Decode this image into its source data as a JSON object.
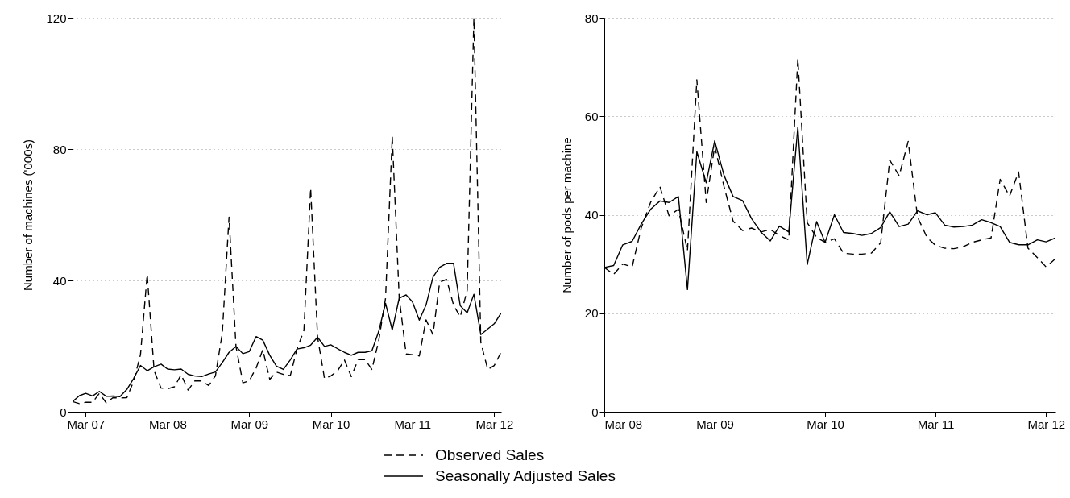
{
  "chart_data": [
    {
      "type": "line",
      "ylabel": "Number of machines ('000s)",
      "x": [
        "2007-01",
        "2007-02",
        "2007-03",
        "2007-04",
        "2007-05",
        "2007-06",
        "2007-07",
        "2007-08",
        "2007-09",
        "2007-10",
        "2007-11",
        "2007-12",
        "2008-01",
        "2008-02",
        "2008-03",
        "2008-04",
        "2008-05",
        "2008-06",
        "2008-07",
        "2008-08",
        "2008-09",
        "2008-10",
        "2008-11",
        "2008-12",
        "2009-01",
        "2009-02",
        "2009-03",
        "2009-04",
        "2009-05",
        "2009-06",
        "2009-07",
        "2009-08",
        "2009-09",
        "2009-10",
        "2009-11",
        "2009-12",
        "2010-01",
        "2010-02",
        "2010-03",
        "2010-04",
        "2010-05",
        "2010-06",
        "2010-07",
        "2010-08",
        "2010-09",
        "2010-10",
        "2010-11",
        "2010-12",
        "2011-01",
        "2011-02",
        "2011-03",
        "2011-04",
        "2011-05",
        "2011-06",
        "2011-07",
        "2011-08",
        "2011-09",
        "2011-10",
        "2011-11",
        "2011-12",
        "2012-01",
        "2012-02",
        "2012-03",
        "2012-04"
      ],
      "series": [
        {
          "name": "Observed Sales",
          "color": "#000000",
          "line_style": "dashed",
          "values": [
            3.1,
            2.5,
            2.9,
            2.9,
            5.6,
            2.7,
            4.3,
            4.2,
            4.3,
            9.2,
            17.4,
            41.9,
            12.5,
            7.2,
            7.0,
            7.6,
            11.3,
            6.6,
            9.4,
            9.4,
            8.0,
            10.9,
            24.0,
            59.3,
            19.9,
            8.8,
            9.4,
            13.3,
            18.9,
            9.9,
            12.1,
            11.4,
            11.0,
            19.1,
            24.8,
            68.1,
            22.7,
            10.1,
            10.9,
            12.5,
            15.8,
            10.7,
            15.9,
            15.9,
            12.9,
            21.5,
            34.6,
            83.8,
            34.8,
            17.6,
            17.4,
            17.0,
            28.0,
            23.5,
            39.5,
            40.3,
            32.5,
            28.9,
            37.0,
            120.0,
            21.1,
            12.9,
            14.1,
            18.2
          ]
        },
        {
          "name": "Seasonally Adjusted Sales",
          "color": "#000000",
          "line_style": "solid",
          "values": [
            3.1,
            4.9,
            5.6,
            4.8,
            6.2,
            4.7,
            4.8,
            4.6,
            6.8,
            10.1,
            14.1,
            12.5,
            13.7,
            14.5,
            13.0,
            12.8,
            13.0,
            11.4,
            10.9,
            10.7,
            11.5,
            12.1,
            15.0,
            18.1,
            19.9,
            17.7,
            18.3,
            22.9,
            21.8,
            17.2,
            13.9,
            12.9,
            15.8,
            19.1,
            19.5,
            20.3,
            22.7,
            19.9,
            20.4,
            19.2,
            18.1,
            17.2,
            18.1,
            18.1,
            18.6,
            24.4,
            33.0,
            24.9,
            34.6,
            35.6,
            33.5,
            27.9,
            32.5,
            41.0,
            44.0,
            45.2,
            45.2,
            32.3,
            30.1,
            35.8,
            23.5,
            25.2,
            26.8,
            30.1
          ]
        }
      ],
      "xlim": [
        "2007-01",
        "2012-04"
      ],
      "xticks": [
        {
          "value": "2007-03",
          "label": "Mar 07"
        },
        {
          "value": "2008-03",
          "label": "Mar 08"
        },
        {
          "value": "2009-03",
          "label": "Mar 09"
        },
        {
          "value": "2010-03",
          "label": "Mar 10"
        },
        {
          "value": "2011-03",
          "label": "Mar 11"
        },
        {
          "value": "2012-03",
          "label": "Mar 12"
        }
      ],
      "ylim": [
        0,
        120
      ],
      "yticks": [
        0,
        40,
        80,
        120
      ],
      "grid": "y",
      "legend": "bottom"
    },
    {
      "type": "line",
      "ylabel": "Number of pods per machine",
      "x": [
        "2008-03",
        "2008-04",
        "2008-05",
        "2008-06",
        "2008-07",
        "2008-08",
        "2008-09",
        "2008-10",
        "2008-11",
        "2008-12",
        "2009-01",
        "2009-02",
        "2009-03",
        "2009-04",
        "2009-05",
        "2009-06",
        "2009-07",
        "2009-08",
        "2009-09",
        "2009-10",
        "2009-11",
        "2009-12",
        "2010-01",
        "2010-02",
        "2010-03",
        "2010-04",
        "2010-05",
        "2010-06",
        "2010-07",
        "2010-08",
        "2010-09",
        "2010-10",
        "2010-11",
        "2010-12",
        "2011-01",
        "2011-02",
        "2011-03",
        "2011-04",
        "2011-05",
        "2011-06",
        "2011-07",
        "2011-08",
        "2011-09",
        "2011-10",
        "2011-11",
        "2011-12",
        "2012-01",
        "2012-02",
        "2012-03",
        "2012-04"
      ],
      "series": [
        {
          "name": "Observed Sales",
          "color": "#000000",
          "line_style": "dashed",
          "values": [
            29.3,
            27.9,
            30.0,
            29.4,
            37.3,
            42.5,
            45.7,
            39.8,
            41.1,
            32.7,
            67.4,
            42.5,
            53.9,
            45.7,
            38.7,
            36.8,
            37.3,
            36.5,
            37.0,
            35.8,
            34.9,
            71.7,
            38.4,
            35.4,
            34.4,
            35.1,
            32.2,
            32.0,
            32.0,
            32.2,
            34.3,
            51.1,
            47.9,
            54.9,
            39.5,
            35.4,
            33.8,
            33.2,
            33.1,
            33.5,
            34.4,
            34.9,
            35.3,
            47.2,
            43.8,
            48.7,
            33.2,
            31.3,
            29.4,
            31.1
          ]
        },
        {
          "name": "Seasonally Adjusted Sales",
          "color": "#000000",
          "line_style": "solid",
          "values": [
            29.3,
            29.7,
            33.9,
            34.6,
            38.1,
            41.1,
            42.8,
            42.5,
            43.7,
            24.8,
            52.8,
            46.5,
            55.0,
            48.0,
            43.7,
            42.9,
            39.2,
            36.5,
            34.7,
            37.7,
            36.5,
            57.8,
            29.9,
            38.6,
            34.4,
            40.0,
            36.4,
            36.2,
            35.8,
            36.2,
            37.4,
            40.6,
            37.6,
            38.1,
            40.8,
            40.0,
            40.4,
            37.9,
            37.5,
            37.6,
            37.9,
            39.0,
            38.4,
            37.6,
            34.4,
            33.9,
            33.9,
            34.9,
            34.5,
            35.3
          ]
        }
      ],
      "xlim": [
        "2008-03",
        "2012-04"
      ],
      "xticks": [
        {
          "value": "2008-03",
          "label": "Mar 08"
        },
        {
          "value": "2009-03",
          "label": "Mar 09"
        },
        {
          "value": "2010-03",
          "label": "Mar 10"
        },
        {
          "value": "2011-03",
          "label": "Mar 11"
        },
        {
          "value": "2012-03",
          "label": "Mar 12"
        }
      ],
      "ylim": [
        0,
        80
      ],
      "yticks": [
        0,
        20,
        40,
        60,
        80
      ],
      "grid": "y",
      "legend": "bottom"
    }
  ]
}
